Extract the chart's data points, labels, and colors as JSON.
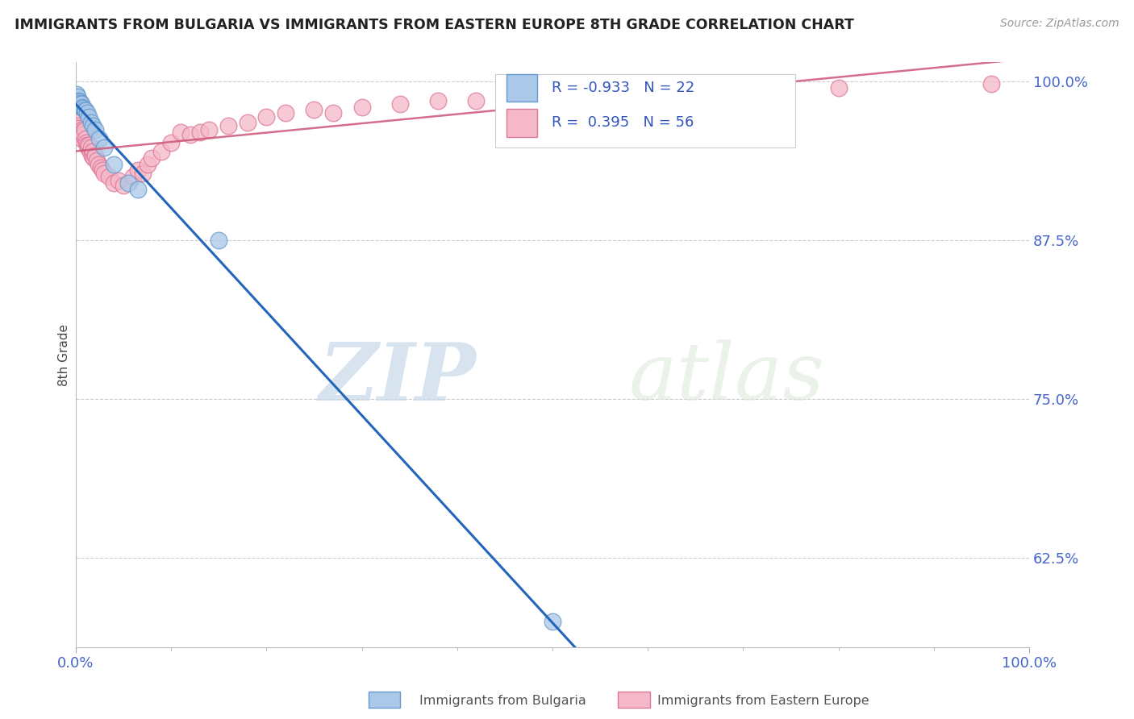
{
  "title": "IMMIGRANTS FROM BULGARIA VS IMMIGRANTS FROM EASTERN EUROPE 8TH GRADE CORRELATION CHART",
  "source": "Source: ZipAtlas.com",
  "ylabel": "8th Grade",
  "ytick_vals": [
    0.625,
    0.75,
    0.875,
    1.0
  ],
  "ytick_labels": [
    "62.5%",
    "75.0%",
    "87.5%",
    "100.0%"
  ],
  "xlim": [
    0.0,
    1.0
  ],
  "ylim": [
    0.555,
    1.015
  ],
  "bulgaria_color": "#aac8e8",
  "eastern_color": "#f5b8c8",
  "bulgaria_edge": "#6699cc",
  "eastern_edge": "#dd7799",
  "trendline_bulgaria": "#2266bb",
  "trendline_eastern": "#cc5577",
  "legend_R_bulgaria": "-0.933",
  "legend_N_bulgaria": "22",
  "legend_R_eastern": "0.395",
  "legend_N_eastern": "56",
  "legend_label_bulgaria": "Immigrants from Bulgaria",
  "legend_label_eastern": "Immigrants from Eastern Europe",
  "watermark_zip": "ZIP",
  "watermark_atlas": "atlas",
  "bg_color": "#ffffff",
  "grid_color": "#cccccc",
  "bulgaria_x": [
    0.001,
    0.002,
    0.003,
    0.004,
    0.005,
    0.006,
    0.007,
    0.008,
    0.009,
    0.01,
    0.012,
    0.014,
    0.016,
    0.018,
    0.02,
    0.025,
    0.03,
    0.04,
    0.055,
    0.065,
    0.15,
    0.5
  ],
  "bulgaria_y": [
    0.99,
    0.988,
    0.985,
    0.984,
    0.983,
    0.982,
    0.98,
    0.979,
    0.978,
    0.977,
    0.975,
    0.972,
    0.968,
    0.965,
    0.962,
    0.955,
    0.948,
    0.935,
    0.92,
    0.915,
    0.875,
    0.575
  ],
  "eastern_x": [
    0.001,
    0.002,
    0.003,
    0.004,
    0.005,
    0.006,
    0.006,
    0.007,
    0.008,
    0.009,
    0.01,
    0.011,
    0.012,
    0.013,
    0.014,
    0.015,
    0.016,
    0.017,
    0.018,
    0.019,
    0.02,
    0.022,
    0.024,
    0.026,
    0.028,
    0.03,
    0.035,
    0.04,
    0.045,
    0.05,
    0.06,
    0.065,
    0.07,
    0.075,
    0.08,
    0.09,
    0.1,
    0.11,
    0.12,
    0.13,
    0.14,
    0.16,
    0.18,
    0.2,
    0.22,
    0.25,
    0.27,
    0.3,
    0.34,
    0.38,
    0.42,
    0.5,
    0.6,
    0.7,
    0.8,
    0.96
  ],
  "eastern_y": [
    0.968,
    0.965,
    0.963,
    0.96,
    0.958,
    0.962,
    0.955,
    0.96,
    0.958,
    0.962,
    0.955,
    0.952,
    0.95,
    0.948,
    0.95,
    0.945,
    0.948,
    0.942,
    0.945,
    0.94,
    0.942,
    0.938,
    0.935,
    0.932,
    0.93,
    0.928,
    0.925,
    0.92,
    0.922,
    0.918,
    0.925,
    0.93,
    0.928,
    0.935,
    0.94,
    0.945,
    0.952,
    0.96,
    0.958,
    0.96,
    0.962,
    0.965,
    0.968,
    0.972,
    0.975,
    0.978,
    0.975,
    0.98,
    0.982,
    0.985,
    0.985,
    0.988,
    0.99,
    0.993,
    0.995,
    0.998
  ]
}
